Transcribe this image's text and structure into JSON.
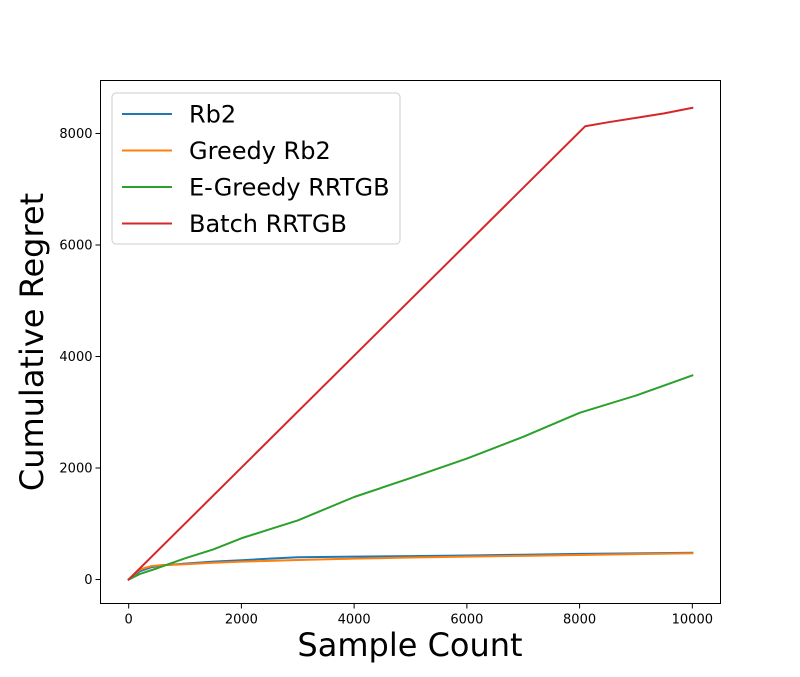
{
  "chart_data": {
    "type": "line",
    "xlabel": "Sample Count",
    "ylabel": "Cumulative Regret",
    "xlim": [
      -500,
      10500
    ],
    "ylim": [
      -430,
      8950
    ],
    "xticks": [
      0,
      2000,
      4000,
      6000,
      8000,
      10000
    ],
    "yticks": [
      0,
      2000,
      4000,
      6000,
      8000
    ],
    "grid": false,
    "legend_position": "upper-left",
    "series": [
      {
        "name": "Rb2",
        "color": "#1f77b4",
        "x": [
          0,
          200,
          400,
          600,
          800,
          1000,
          1500,
          2000,
          2500,
          3000,
          4000,
          5000,
          6000,
          7000,
          8000,
          9000,
          10000
        ],
        "y": [
          0,
          150,
          220,
          255,
          270,
          285,
          320,
          345,
          375,
          400,
          410,
          420,
          430,
          445,
          460,
          470,
          480
        ]
      },
      {
        "name": "Greedy Rb2",
        "color": "#ff7f0e",
        "x": [
          0,
          200,
          400,
          600,
          800,
          1000,
          1500,
          2000,
          2500,
          3000,
          4000,
          5000,
          6000,
          7000,
          8000,
          9000,
          10000
        ],
        "y": [
          0,
          180,
          240,
          260,
          265,
          275,
          300,
          320,
          335,
          350,
          375,
          395,
          410,
          425,
          440,
          455,
          470
        ]
      },
      {
        "name": "E-Greedy RRTGB",
        "color": "#2ca02c",
        "x": [
          0,
          200,
          500,
          1000,
          1500,
          2000,
          2500,
          3000,
          4000,
          5000,
          6000,
          7000,
          8000,
          9000,
          10000
        ],
        "y": [
          0,
          100,
          200,
          380,
          540,
          740,
          900,
          1060,
          1480,
          1820,
          2170,
          2560,
          2990,
          3300,
          3660
        ]
      },
      {
        "name": "Batch RRTGB",
        "color": "#d62728",
        "x": [
          0,
          8100,
          8500,
          9000,
          9500,
          10000
        ],
        "y": [
          0,
          8130,
          8200,
          8280,
          8360,
          8460
        ]
      }
    ]
  }
}
